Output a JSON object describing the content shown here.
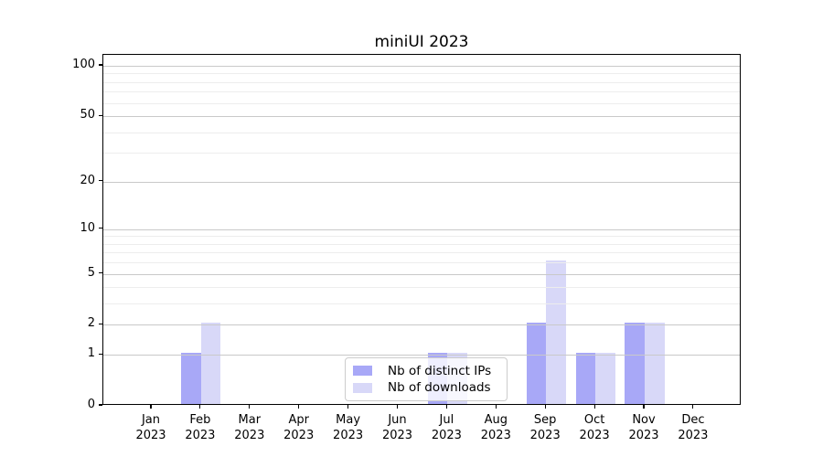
{
  "chart_data": {
    "type": "bar",
    "title": "miniUI 2023",
    "x_months": [
      "Jan",
      "Feb",
      "Mar",
      "Apr",
      "May",
      "Jun",
      "Jul",
      "Aug",
      "Sep",
      "Oct",
      "Nov",
      "Dec"
    ],
    "x_year": "2023",
    "series": [
      {
        "name": "Nb of distinct IPs",
        "color": "#a8a8f7",
        "values": [
          0,
          1,
          0,
          0,
          0,
          0,
          1,
          0,
          2,
          1,
          2,
          0
        ]
      },
      {
        "name": "Nb of downloads",
        "color": "#d8d8f8",
        "values": [
          0,
          2,
          0,
          0,
          0,
          0,
          1,
          0,
          6,
          1,
          2,
          0
        ]
      }
    ],
    "yscale": "log1p",
    "ylim": [
      0,
      117
    ],
    "yticks": [
      0,
      1,
      2,
      5,
      10,
      20,
      50,
      100
    ],
    "minor_grid_values": [
      3,
      4,
      6,
      7,
      8,
      9,
      30,
      40,
      60,
      70,
      80,
      90
    ],
    "grid": "on",
    "legend_position": "lower center",
    "colors": {
      "major_grid": "#c9c9c9",
      "minor_grid": "#ededed",
      "spine": "#000000",
      "text": "#000000",
      "legend_border": "#cccccc"
    }
  }
}
